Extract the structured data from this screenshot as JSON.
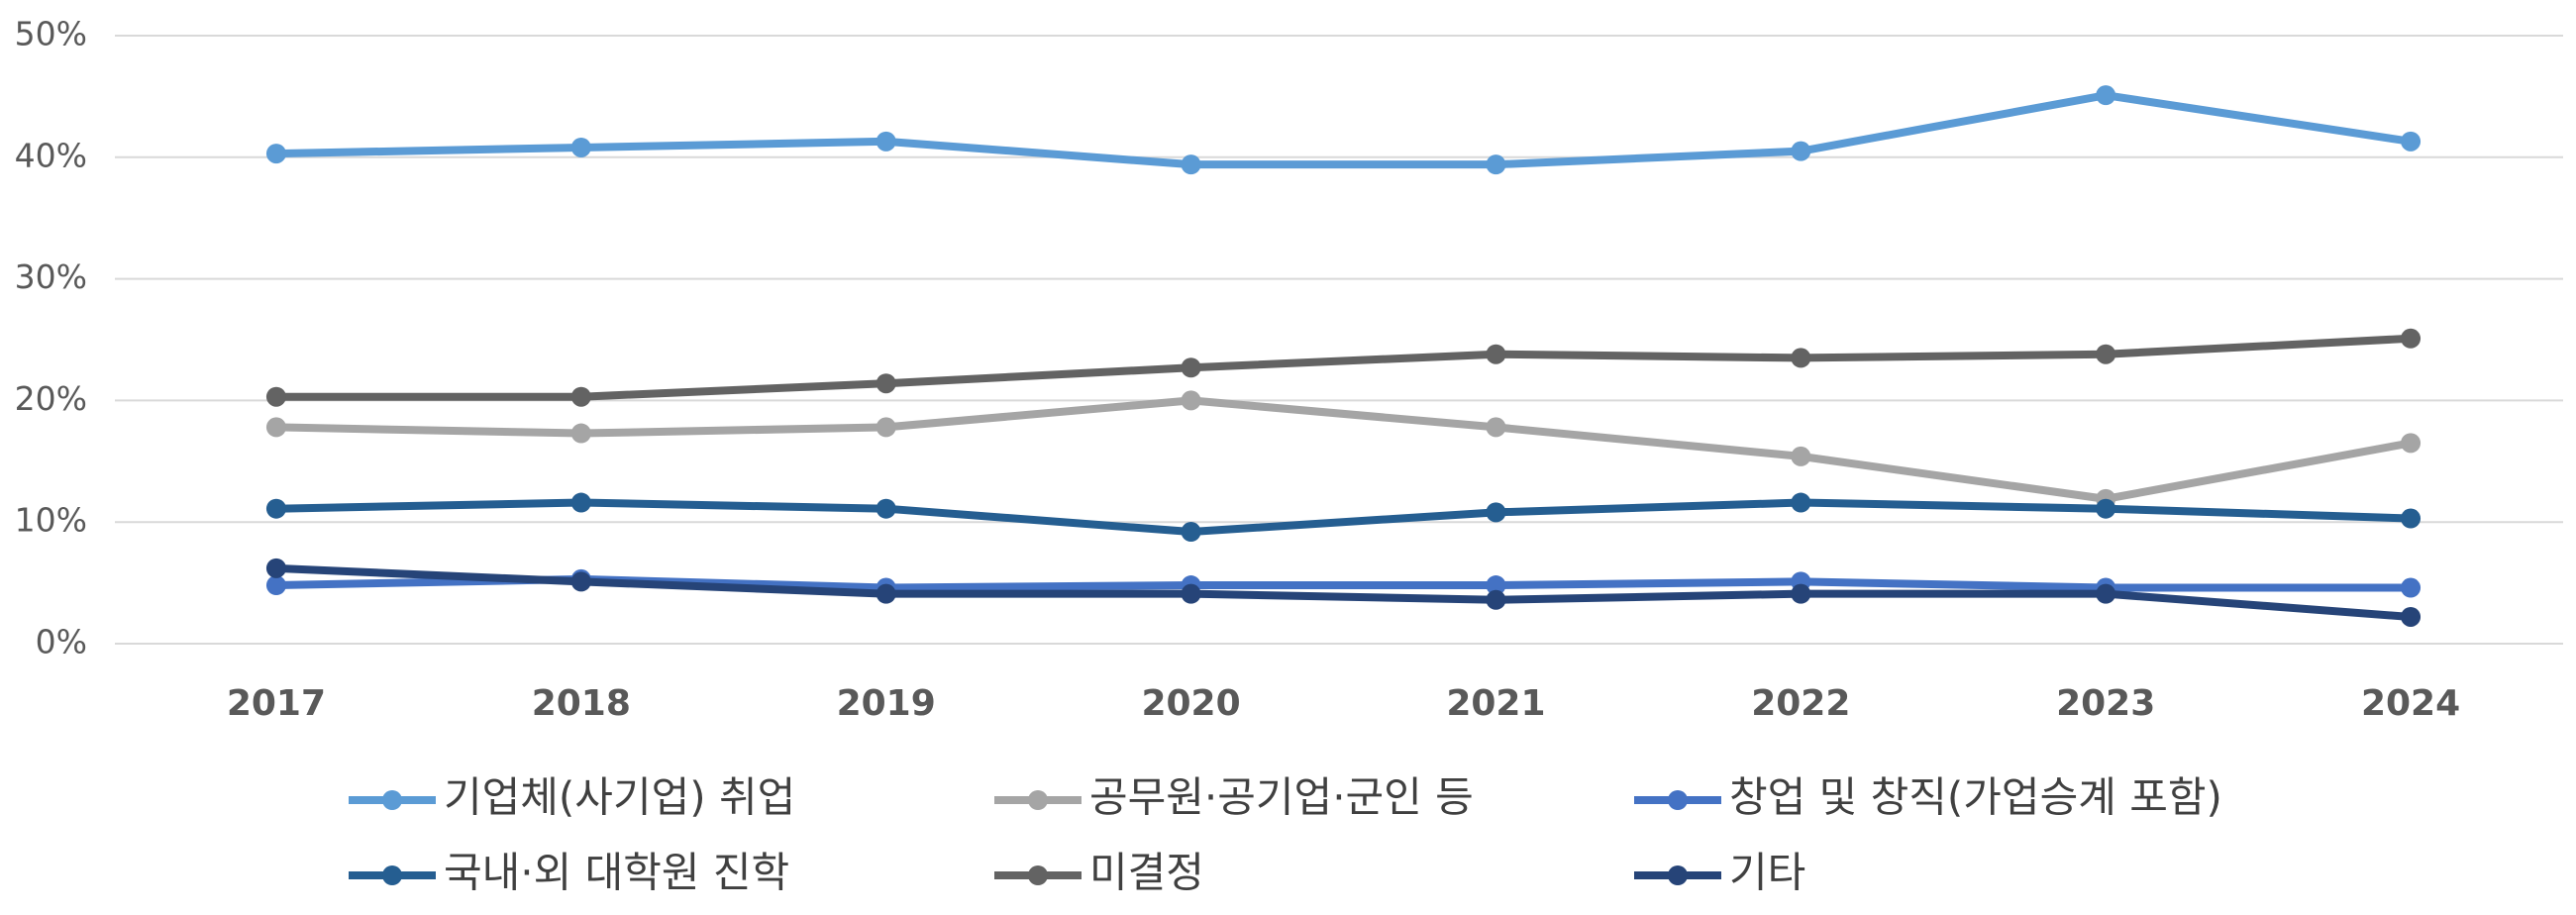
{
  "chart_data": {
    "type": "line",
    "categories": [
      "2017",
      "2018",
      "2019",
      "2020",
      "2021",
      "2022",
      "2023",
      "2024"
    ],
    "series": [
      {
        "name": "기업체(사기업) 취업",
        "color": "#5B9BD5",
        "values": [
          40.3,
          40.8,
          41.3,
          39.4,
          39.4,
          40.5,
          45.1,
          41.3
        ]
      },
      {
        "name": "공무원·공기업·군인 등",
        "color": "#A5A5A5",
        "values": [
          17.8,
          17.3,
          17.8,
          20.0,
          17.8,
          15.4,
          11.9,
          16.5
        ]
      },
      {
        "name": "창업 및 창직(가업승계 포함)",
        "color": "#4472C4",
        "values": [
          4.8,
          5.3,
          4.6,
          4.8,
          4.8,
          5.1,
          4.6,
          4.6
        ]
      },
      {
        "name": "국내·외 대학원 진학",
        "color": "#255E91",
        "values": [
          11.1,
          11.6,
          11.1,
          9.2,
          10.8,
          11.6,
          11.1,
          10.3
        ]
      },
      {
        "name": "미결정",
        "color": "#636363",
        "values": [
          20.3,
          20.3,
          21.4,
          22.7,
          23.8,
          23.5,
          23.8,
          25.1
        ]
      },
      {
        "name": "기타",
        "color": "#264478",
        "values": [
          6.2,
          5.1,
          4.1,
          4.1,
          3.6,
          4.1,
          4.1,
          2.2
        ]
      }
    ],
    "ylim": [
      0,
      50
    ],
    "yticks": [
      {
        "value": 0,
        "label": "0%"
      },
      {
        "value": 10,
        "label": "10%"
      },
      {
        "value": 20,
        "label": "20%"
      },
      {
        "value": 30,
        "label": "30%"
      },
      {
        "value": 40,
        "label": "40%"
      },
      {
        "value": 50,
        "label": "50%"
      }
    ],
    "grid": true,
    "legend": "bottom"
  }
}
